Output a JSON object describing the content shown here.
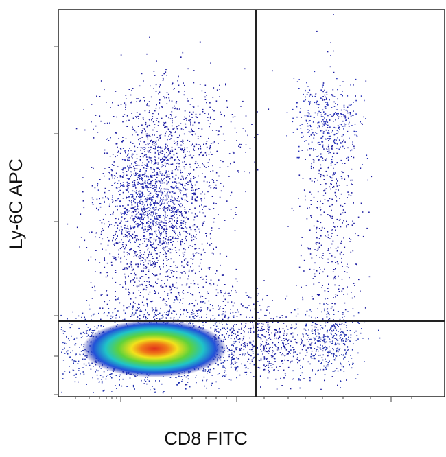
{
  "chart_data": {
    "type": "density",
    "xlabel": "CD8 FITC",
    "ylabel": "Ly-6C APC"
  }
}
